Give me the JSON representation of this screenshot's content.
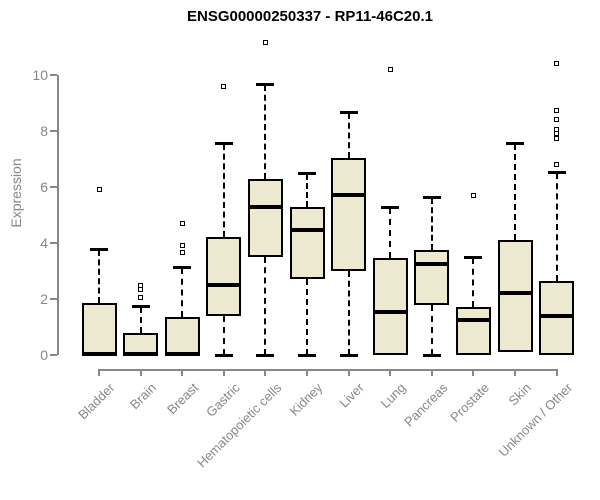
{
  "chart_data": {
    "type": "boxplot",
    "title": "ENSG00000250337 - RP11-46C20.1",
    "xlabel": "",
    "ylabel": "Expression",
    "ylim": [
      0,
      11.3
    ],
    "yticks": [
      0,
      2,
      4,
      6,
      8,
      10
    ],
    "grid": false,
    "legend": "none",
    "categories": [
      "Bladder",
      "Brain",
      "Breast",
      "Gastric",
      "Hematopoietic cells",
      "Kidney",
      "Liver",
      "Lung",
      "Pancreas",
      "Prostate",
      "Skin",
      "Unknown / Other"
    ],
    "boxes": [
      {
        "category": "Bladder",
        "whisker_low": 0,
        "q1": 0,
        "median": 0.05,
        "q3": 1.85,
        "whisker_high": 3.75,
        "outliers": [
          5.9
        ]
      },
      {
        "category": "Brain",
        "whisker_low": 0,
        "q1": 0,
        "median": 0.05,
        "q3": 0.8,
        "whisker_high": 1.7,
        "outliers": [
          2.5,
          2.35,
          2.05
        ]
      },
      {
        "category": "Breast",
        "whisker_low": 0,
        "q1": 0,
        "median": 0.05,
        "q3": 1.35,
        "whisker_high": 3.1,
        "outliers": [
          4.7,
          3.9,
          3.65
        ]
      },
      {
        "category": "Gastric",
        "whisker_low": 0,
        "q1": 1.4,
        "median": 2.5,
        "q3": 4.2,
        "whisker_high": 7.55,
        "outliers": [
          9.6
        ]
      },
      {
        "category": "Hematopoietic cells",
        "whisker_low": 0,
        "q1": 3.5,
        "median": 5.3,
        "q3": 6.3,
        "whisker_high": 9.65,
        "outliers": [
          11.15
        ]
      },
      {
        "category": "Kidney",
        "whisker_low": 0,
        "q1": 2.7,
        "median": 4.45,
        "q3": 5.3,
        "whisker_high": 6.45,
        "outliers": []
      },
      {
        "category": "Liver",
        "whisker_low": 0,
        "q1": 3.0,
        "median": 5.7,
        "q3": 7.05,
        "whisker_high": 8.65,
        "outliers": []
      },
      {
        "category": "Lung",
        "whisker_low": 0,
        "q1": 0,
        "median": 1.55,
        "q3": 3.45,
        "whisker_high": 5.25,
        "outliers": [
          10.2
        ]
      },
      {
        "category": "Pancreas",
        "whisker_low": 0,
        "q1": 1.8,
        "median": 3.25,
        "q3": 3.75,
        "whisker_high": 5.6,
        "outliers": []
      },
      {
        "category": "Prostate",
        "whisker_low": 0,
        "q1": 0,
        "median": 1.25,
        "q3": 1.7,
        "whisker_high": 3.45,
        "outliers": [
          5.7
        ]
      },
      {
        "category": "Skin",
        "whisker_low": 0.1,
        "q1": 0.1,
        "median": 2.2,
        "q3": 4.1,
        "whisker_high": 7.55,
        "outliers": []
      },
      {
        "category": "Unknown / Other",
        "whisker_low": 0,
        "q1": 0,
        "median": 1.4,
        "q3": 2.65,
        "whisker_high": 6.5,
        "outliers": [
          10.4,
          8.75,
          8.4,
          8.05,
          7.9,
          7.75,
          6.8
        ]
      }
    ],
    "colors": {
      "box_fill": "#EDE8D0",
      "box_border": "#000000",
      "median": "#000000",
      "whisker": "#000000",
      "outlier_fill": "#FFFFFF",
      "axis": "#888888",
      "tick_label": "#878787",
      "title": "#000000",
      "background": "#FFFFFF"
    }
  }
}
